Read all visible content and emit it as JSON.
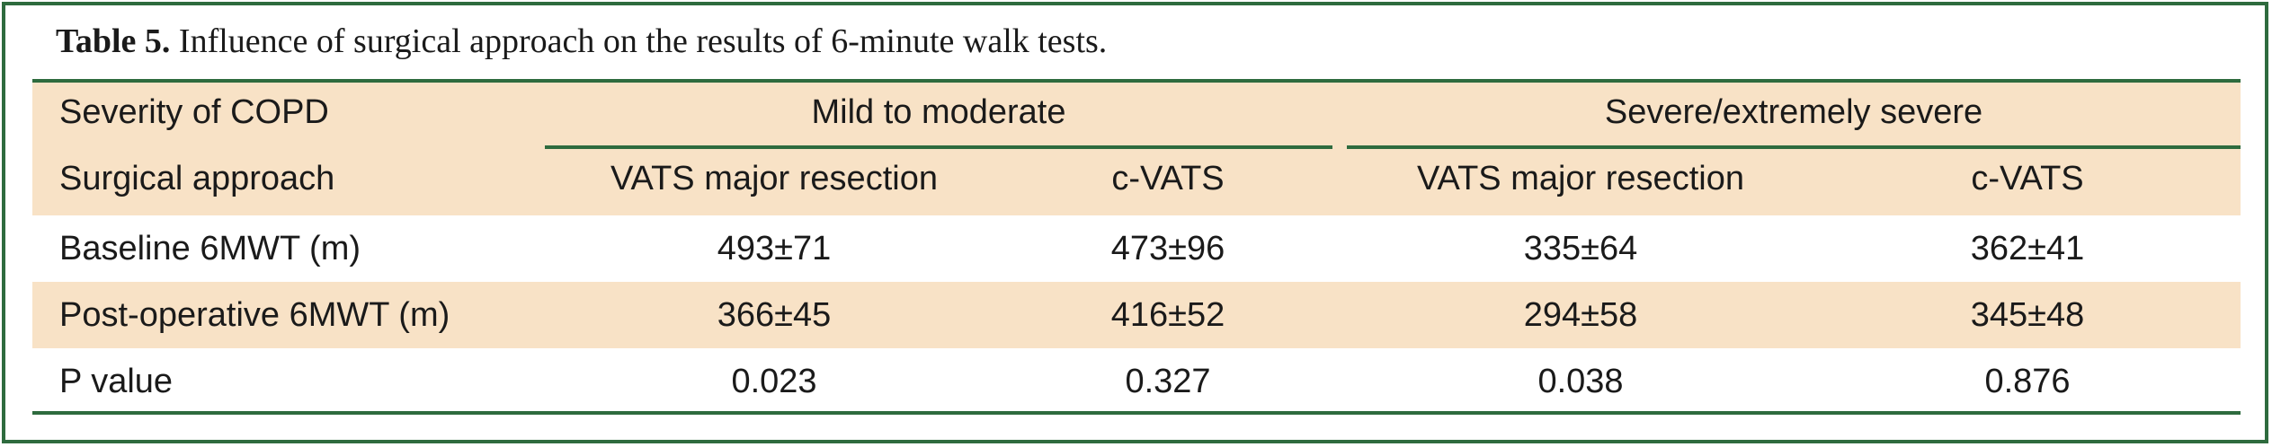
{
  "caption": {
    "label": "Table 5.",
    "text": " Influence of surgical approach on the results of 6-minute walk tests."
  },
  "table": {
    "header_row1": {
      "stub": "Severity of COPD",
      "group1": "Mild to moderate",
      "group2": "Severe/extremely severe"
    },
    "header_row2": {
      "stub": "Surgical approach",
      "cols": [
        "VATS major resection",
        "c-VATS",
        "VATS major resection",
        "c-VATS"
      ]
    },
    "rows": [
      {
        "label": "Baseline 6MWT (m)",
        "values": [
          "493±71",
          "473±96",
          "335±64",
          "362±41"
        ]
      },
      {
        "label": "Post-operative 6MWT (m)",
        "values": [
          "366±45",
          "416±52",
          "294±58",
          "345±48"
        ]
      },
      {
        "label": "P value",
        "values": [
          "0.023",
          "0.327",
          "0.038",
          "0.876"
        ]
      }
    ]
  },
  "colors": {
    "border_green": "#2e6b3e",
    "band_peach": "#f8e2c6"
  }
}
